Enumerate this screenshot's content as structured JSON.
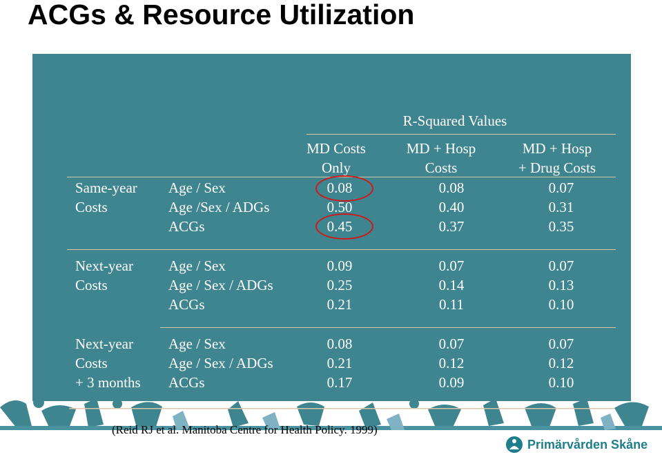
{
  "title": "ACGs & Resource Utilization",
  "table": {
    "super_header": "R-Squared Values",
    "columns": [
      {
        "line1": "MD Costs",
        "line2": "Only"
      },
      {
        "line1": "MD + Hosp",
        "line2": "Costs"
      },
      {
        "line1": "MD + Hosp",
        "line2": "+ Drug Costs"
      }
    ],
    "groups": [
      {
        "label": [
          "Same-year",
          "Costs"
        ],
        "rows": [
          {
            "model": "Age / Sex",
            "values": [
              "0.08",
              "0.08",
              "0.07"
            ]
          },
          {
            "model": "Age /Sex / ADGs",
            "values": [
              "0.50",
              "0.40",
              "0.31"
            ]
          },
          {
            "model": "ACGs",
            "values": [
              "0.45",
              "0.37",
              "0.35"
            ]
          }
        ]
      },
      {
        "label": [
          "Next-year",
          "Costs"
        ],
        "rows": [
          {
            "model": "Age / Sex",
            "values": [
              "0.09",
              "0.07",
              "0.07"
            ]
          },
          {
            "model": "Age / Sex / ADGs",
            "values": [
              "0.25",
              "0.14",
              "0.13"
            ]
          },
          {
            "model": "ACGs",
            "values": [
              "0.21",
              "0.11",
              "0.10"
            ]
          }
        ]
      },
      {
        "label": [
          "Next-year",
          "Costs",
          "+ 3 months"
        ],
        "rows": [
          {
            "model": "Age / Sex",
            "values": [
              "0.08",
              "0.07",
              "0.07"
            ]
          },
          {
            "model": "Age / Sex / ADGs",
            "values": [
              "0.21",
              "0.12",
              "0.12"
            ]
          },
          {
            "model": "ACGs",
            "values": [
              "0.17",
              "0.09",
              "0.10"
            ]
          }
        ]
      }
    ]
  },
  "highlight_color": "#d01818",
  "panel_color": "#3f858f",
  "citation": "(Reid RJ et al. Manitoba Centre for Health Policy. 1999)",
  "logo": {
    "text": "Primärvården Skåne",
    "icon": "region-skane-logo-icon"
  }
}
